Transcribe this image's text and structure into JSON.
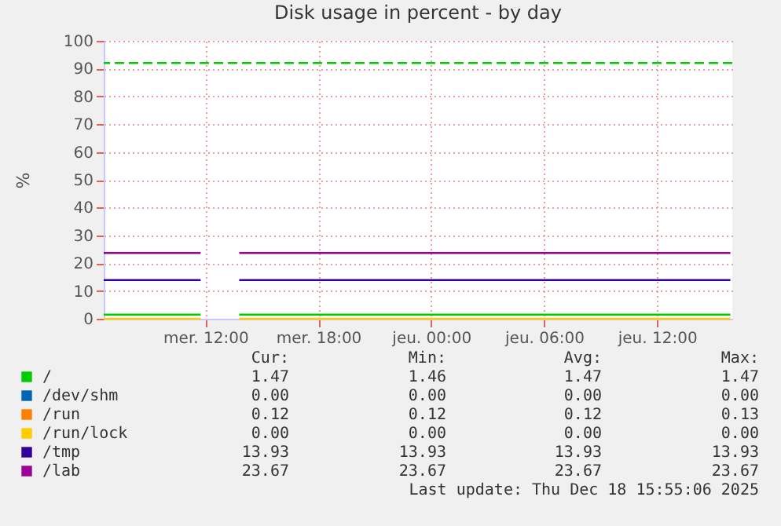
{
  "chart_data": {
    "type": "line",
    "title": "Disk usage in percent - by day",
    "ylabel": "%",
    "x": [
      "2025-12-17T06:36",
      "2025-12-17T11:45",
      "2025-12-17T12:45",
      "2025-12-17T13:48",
      "2025-12-18T15:54"
    ],
    "xlim": [
      "2025-12-17T06:36",
      "2025-12-18T16:00"
    ],
    "xticks": [
      {
        "value": "2025-12-17T12:00",
        "label": "mer. 12:00"
      },
      {
        "value": "2025-12-17T18:00",
        "label": "mer. 18:00"
      },
      {
        "value": "2025-12-18T00:00",
        "label": "jeu. 00:00"
      },
      {
        "value": "2025-12-18T06:00",
        "label": "jeu. 06:00"
      },
      {
        "value": "2025-12-18T12:00",
        "label": "jeu. 12:00"
      }
    ],
    "ylim": [
      0,
      100
    ],
    "yticks": [
      0,
      10,
      20,
      30,
      40,
      50,
      60,
      70,
      80,
      90,
      100
    ],
    "series": [
      {
        "name": "/",
        "color": "#00cc00",
        "values": [
          1.47,
          1.47,
          null,
          1.47,
          1.47
        ]
      },
      {
        "name": "/dev/shm",
        "color": "#0066b3",
        "values": [
          null,
          null,
          null,
          null,
          null
        ]
      },
      {
        "name": "/run",
        "color": "#ff8000",
        "values": [
          null,
          null,
          null,
          null,
          null
        ]
      },
      {
        "name": "/run/lock",
        "color": "#ffcc00",
        "values": [
          0.0,
          0.0,
          null,
          0.0,
          0.0
        ]
      },
      {
        "name": "/tmp",
        "color": "#330099",
        "values": [
          13.93,
          13.93,
          null,
          13.93,
          13.93
        ]
      },
      {
        "name": "/lab",
        "color": "#990099",
        "values": [
          23.67,
          23.67,
          null,
          23.67,
          23.67
        ]
      }
    ],
    "ref_lines": [
      {
        "axis": "y",
        "value": 92,
        "color": "#00cc00",
        "line_style": "dashed"
      }
    ],
    "grid": true,
    "legend": "bottom",
    "line_style": "solid",
    "marker": "none",
    "annotations": [
      "Cur:",
      "Min:",
      "Avg:",
      "Max:",
      "1.47",
      "1.46",
      "1.47",
      "1.47",
      "0.00",
      "0.00",
      "0.00",
      "0.00",
      "0.12",
      "0.12",
      "0.12",
      "0.13",
      "0.00",
      "0.00",
      "0.00",
      "0.00",
      "13.93",
      "13.93",
      "13.93",
      "13.93",
      "23.67",
      "23.67",
      "23.67",
      "23.67",
      "Last update: Thu Dec 18 15:55:06 2025"
    ]
  }
}
